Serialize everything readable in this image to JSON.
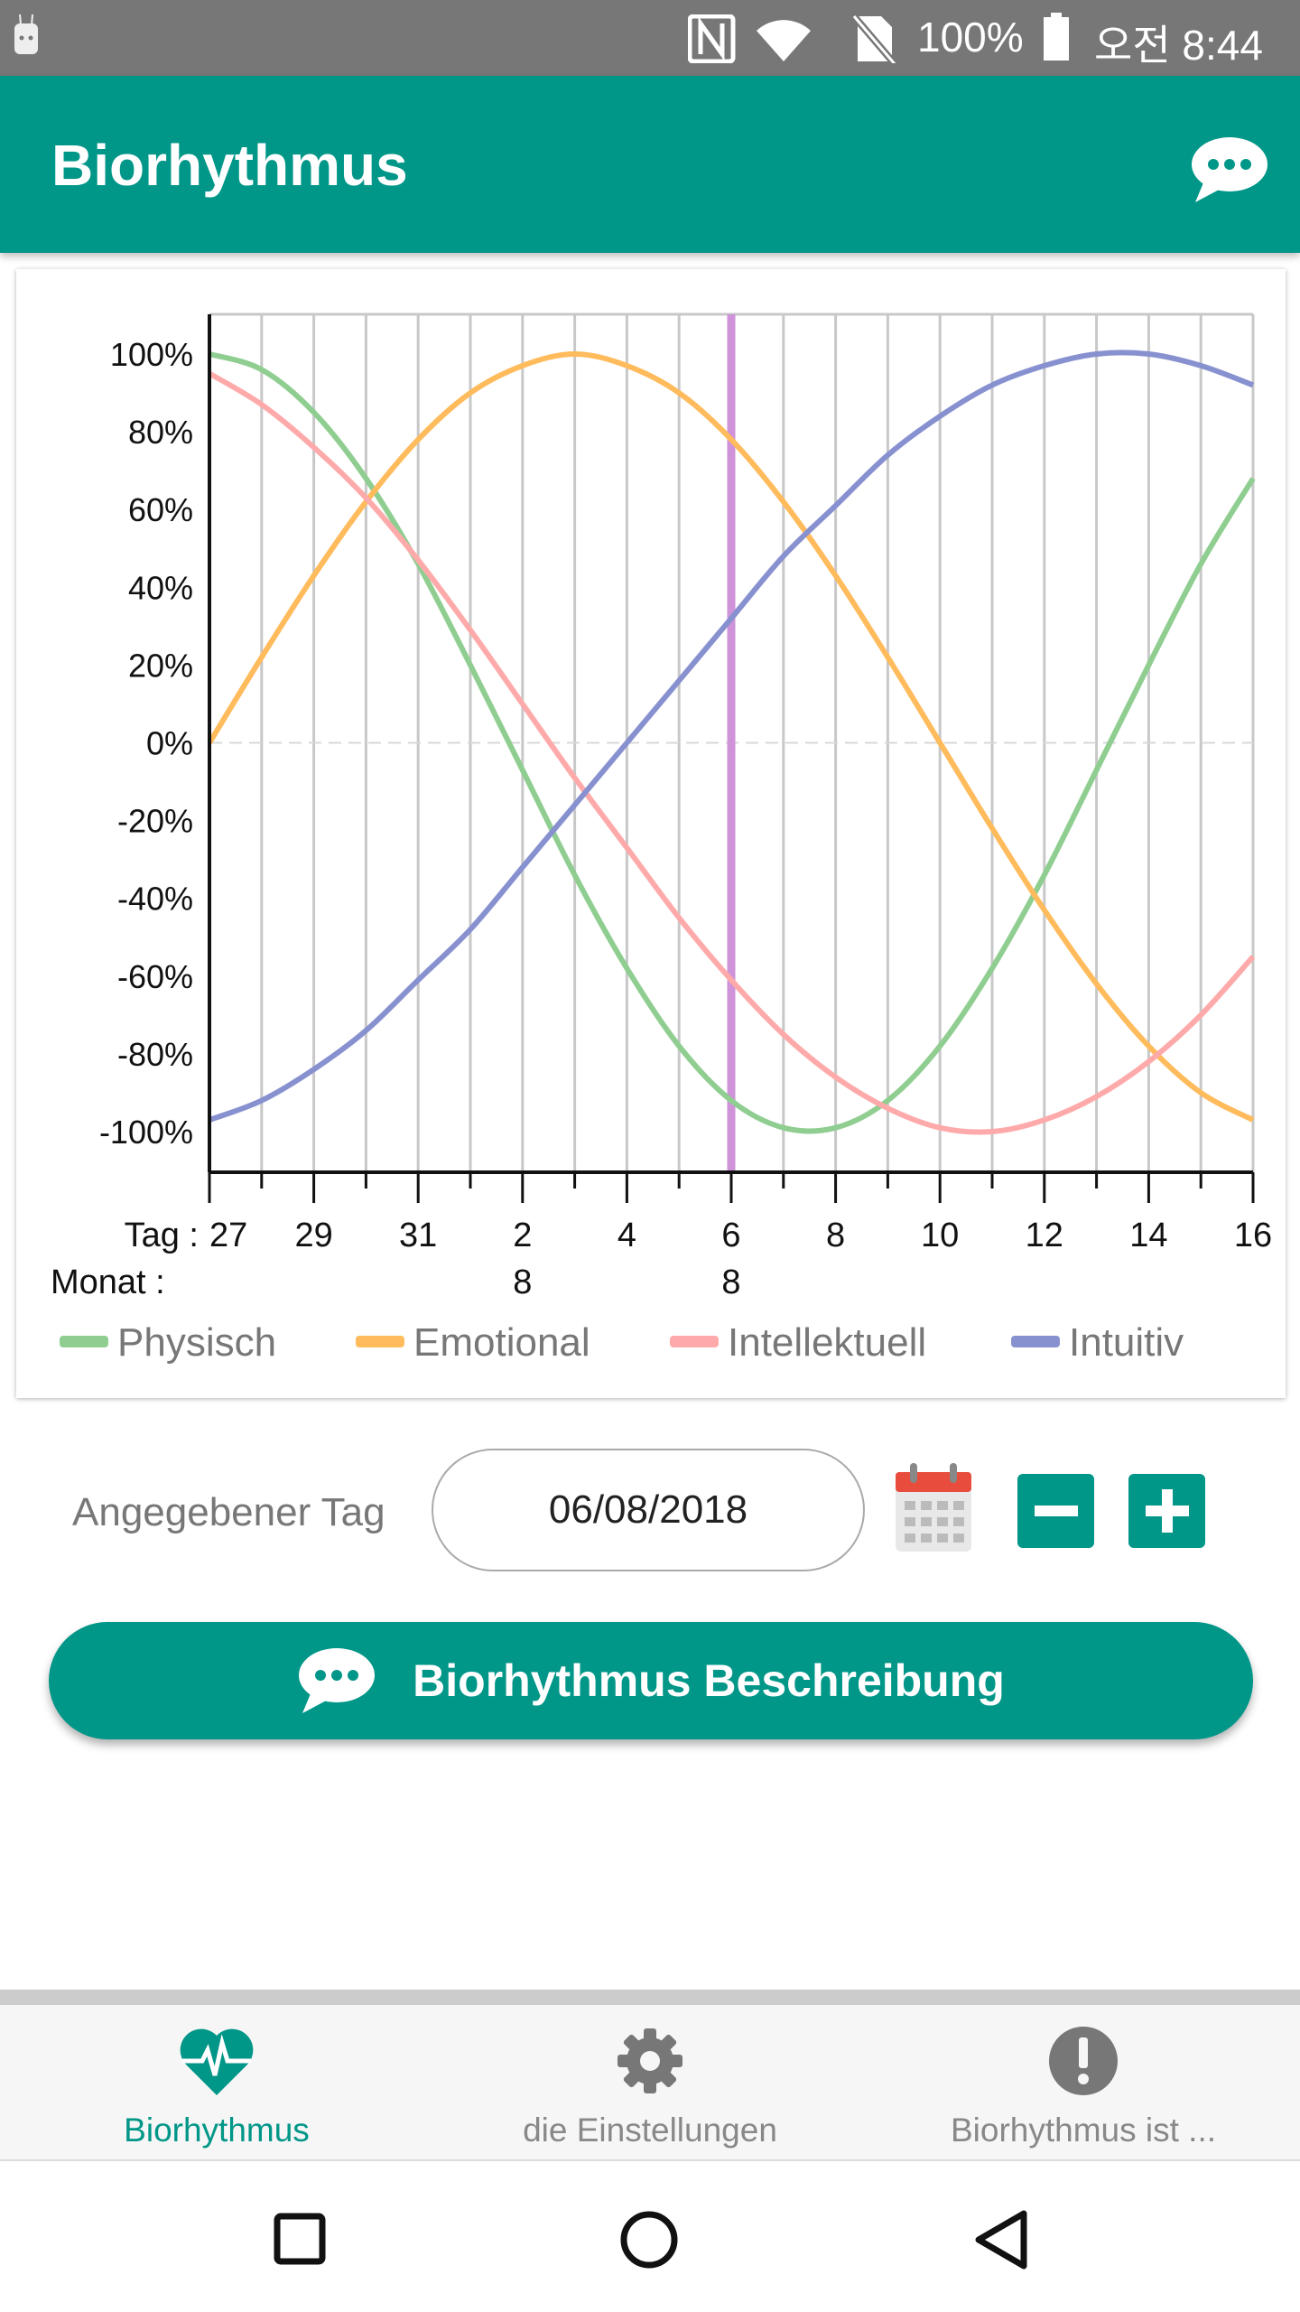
{
  "status_bar": {
    "battery": "100%",
    "time": "오전 8:44"
  },
  "app_bar": {
    "title": "Biorhythmus",
    "icon": "chat-bubble-icon"
  },
  "chart_data": {
    "type": "line",
    "x_prefix": "Tag :",
    "month_prefix": "Monat :",
    "x": [
      "27",
      "28",
      "29",
      "30",
      "31",
      "1",
      "2",
      "3",
      "4",
      "5",
      "6",
      "7",
      "8",
      "9",
      "10",
      "11",
      "12",
      "13",
      "14",
      "15",
      "16"
    ],
    "x_tick_labels": [
      "27",
      "29",
      "31",
      "2",
      "4",
      "6",
      "8",
      "10",
      "12",
      "14",
      "16"
    ],
    "month_labels": [
      {
        "index": 6,
        "label": "8"
      },
      {
        "index": 10,
        "label": "8"
      }
    ],
    "y_ticks": [
      "100%",
      "80%",
      "60%",
      "40%",
      "20%",
      "0%",
      "-20%",
      "-40%",
      "-60%",
      "-80%",
      "-100%"
    ],
    "ylim": [
      -100,
      100
    ],
    "selected_index": 10,
    "selected_color": "#ce93d8",
    "series": [
      {
        "name": "Physisch",
        "color": "#8fce90",
        "values": [
          100,
          96,
          85,
          68,
          46,
          20,
          -7,
          -34,
          -58,
          -78,
          -92,
          -99,
          -99,
          -92,
          -78,
          -58,
          -34,
          -7,
          20,
          46,
          68
        ]
      },
      {
        "name": "Emotional",
        "color": "#ffbb5c",
        "values": [
          0,
          22,
          43,
          62,
          78,
          90,
          97,
          100,
          97,
          90,
          78,
          62,
          43,
          22,
          0,
          -22,
          -43,
          -62,
          -78,
          -90,
          -97
        ]
      },
      {
        "name": "Intellektuell",
        "color": "#ffaaaa",
        "values": [
          95,
          87,
          76,
          63,
          47,
          29,
          10,
          -9,
          -27,
          -45,
          -61,
          -75,
          -86,
          -94,
          -99,
          -100,
          -97,
          -91,
          -82,
          -70,
          -55
        ]
      },
      {
        "name": "Intuitiv",
        "color": "#8891d0",
        "values": [
          -97,
          -92,
          -84,
          -74,
          -61,
          -48,
          -32,
          -16,
          0,
          16,
          32,
          48,
          61,
          74,
          84,
          92,
          97,
          100,
          100,
          97,
          92
        ]
      }
    ]
  },
  "date_row": {
    "label": "Angegebener Tag",
    "date": "06/08/2018"
  },
  "description_button": {
    "label": "Biorhythmus Beschreibung"
  },
  "bottom_nav": [
    {
      "label": "Biorhythmus",
      "active": true
    },
    {
      "label": "die Einstellungen",
      "active": false
    },
    {
      "label": "Biorhythmus ist ...",
      "active": false
    }
  ],
  "colors": {
    "primary": "#009688"
  }
}
